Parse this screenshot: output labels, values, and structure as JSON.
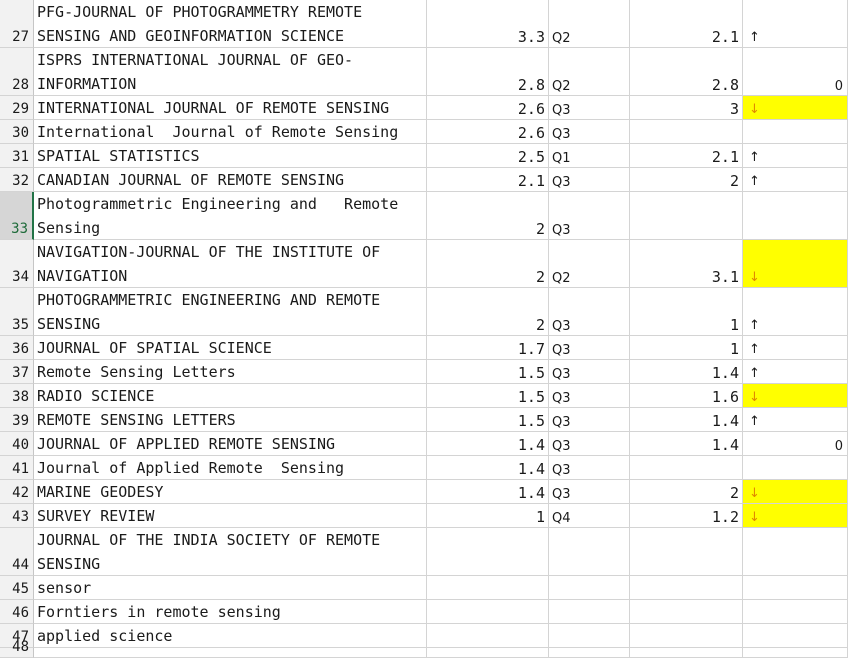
{
  "sheet": {
    "highlight_color": "#ffff00",
    "up_arrow": "↑",
    "down_arrow": "↓",
    "rows": [
      {
        "num": "27",
        "journal_line1": "PFG-JOURNAL OF PHOTOGRAMMETRY REMOTE",
        "journal_line2": "SENSING AND GEOINFORMATION SCIENCE",
        "if": "3.3",
        "quartile": "Q2",
        "prev": "2.1",
        "trend": "up",
        "extra": "",
        "highlight": false
      },
      {
        "num": "28",
        "journal_line1": "ISPRS INTERNATIONAL JOURNAL OF GEO-",
        "journal_line2": "INFORMATION",
        "if": "2.8",
        "quartile": "Q2",
        "prev": "2.8",
        "trend": "",
        "extra": "0",
        "highlight": false
      },
      {
        "num": "29",
        "journal_line1": "",
        "journal_line2": "INTERNATIONAL JOURNAL OF REMOTE SENSING",
        "if": "2.6",
        "quartile": "Q3",
        "prev": "3",
        "trend": "down",
        "extra": "",
        "highlight": true
      },
      {
        "num": "30",
        "journal_line1": "",
        "journal_line2": "International  Journal of Remote Sensing",
        "if": "2.6",
        "quartile": "Q3",
        "prev": "",
        "trend": "",
        "extra": "",
        "highlight": false
      },
      {
        "num": "31",
        "journal_line1": "",
        "journal_line2": "SPATIAL STATISTICS",
        "if": "2.5",
        "quartile": "Q1",
        "prev": "2.1",
        "trend": "up",
        "extra": "",
        "highlight": false
      },
      {
        "num": "32",
        "journal_line1": "",
        "journal_line2": "CANADIAN JOURNAL OF REMOTE SENSING",
        "if": "2.1",
        "quartile": "Q3",
        "prev": "2",
        "trend": "up",
        "extra": "",
        "highlight": false
      },
      {
        "num": "33",
        "journal_line1": "Photogrammetric Engineering and   Remote",
        "journal_line2": "Sensing",
        "if": "2",
        "quartile": "Q3",
        "prev": "",
        "trend": "",
        "extra": "",
        "highlight": false,
        "selected": true
      },
      {
        "num": "34",
        "journal_line1": "NAVIGATION-JOURNAL OF THE INSTITUTE OF",
        "journal_line2": "NAVIGATION",
        "if": "2",
        "quartile": "Q2",
        "prev": "3.1",
        "trend": "down",
        "extra": "",
        "highlight": true
      },
      {
        "num": "35",
        "journal_line1": "PHOTOGRAMMETRIC ENGINEERING AND REMOTE",
        "journal_line2": "SENSING",
        "if": "2",
        "quartile": "Q3",
        "prev": "1",
        "trend": "up",
        "extra": "",
        "highlight": false
      },
      {
        "num": "36",
        "journal_line1": "",
        "journal_line2": "JOURNAL OF SPATIAL SCIENCE",
        "if": "1.7",
        "quartile": "Q3",
        "prev": "1",
        "trend": "up",
        "extra": "",
        "highlight": false
      },
      {
        "num": "37",
        "journal_line1": "",
        "journal_line2": "Remote Sensing Letters",
        "if": "1.5",
        "quartile": "Q3",
        "prev": "1.4",
        "trend": "up",
        "extra": "",
        "highlight": false
      },
      {
        "num": "38",
        "journal_line1": "",
        "journal_line2": "RADIO SCIENCE",
        "if": "1.5",
        "quartile": "Q3",
        "prev": "1.6",
        "trend": "down",
        "extra": "",
        "highlight": true
      },
      {
        "num": "39",
        "journal_line1": "",
        "journal_line2": "REMOTE SENSING LETTERS",
        "if": "1.5",
        "quartile": "Q3",
        "prev": "1.4",
        "trend": "up",
        "extra": "",
        "highlight": false
      },
      {
        "num": "40",
        "journal_line1": "",
        "journal_line2": "JOURNAL OF APPLIED REMOTE SENSING",
        "if": "1.4",
        "quartile": "Q3",
        "prev": "1.4",
        "trend": "",
        "extra": "0",
        "highlight": false
      },
      {
        "num": "41",
        "journal_line1": "",
        "journal_line2": "Journal of Applied Remote  Sensing",
        "if": "1.4",
        "quartile": "Q3",
        "prev": "",
        "trend": "",
        "extra": "",
        "highlight": false
      },
      {
        "num": "42",
        "journal_line1": "",
        "journal_line2": "MARINE GEODESY",
        "if": "1.4",
        "quartile": "Q3",
        "prev": "2",
        "trend": "down",
        "extra": "",
        "highlight": true
      },
      {
        "num": "43",
        "journal_line1": "",
        "journal_line2": "SURVEY REVIEW",
        "if": "1",
        "quartile": "Q4",
        "prev": "1.2",
        "trend": "down",
        "extra": "",
        "highlight": true
      },
      {
        "num": "44",
        "journal_line1": "JOURNAL OF THE INDIA SOCIETY OF REMOTE",
        "journal_line2": "SENSING",
        "if": "",
        "quartile": "",
        "prev": "",
        "trend": "",
        "extra": "",
        "highlight": false
      },
      {
        "num": "45",
        "journal_line1": "",
        "journal_line2": "sensor",
        "if": "",
        "quartile": "",
        "prev": "",
        "trend": "",
        "extra": "",
        "highlight": false
      },
      {
        "num": "46",
        "journal_line1": "",
        "journal_line2": "Forntiers in remote sensing",
        "if": "",
        "quartile": "",
        "prev": "",
        "trend": "",
        "extra": "",
        "highlight": false
      },
      {
        "num": "47",
        "journal_line1": "",
        "journal_line2": "applied science",
        "if": "",
        "quartile": "",
        "prev": "",
        "trend": "",
        "extra": "",
        "highlight": false
      },
      {
        "num": "48",
        "journal_line1": "",
        "journal_line2": "",
        "if": "",
        "quartile": "",
        "prev": "",
        "trend": "",
        "extra": "",
        "highlight": false
      }
    ]
  }
}
